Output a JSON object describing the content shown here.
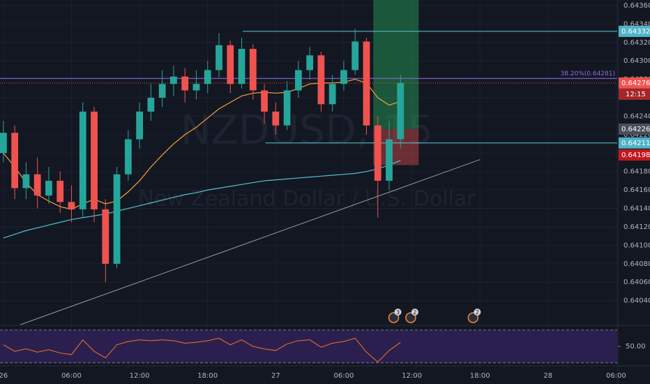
{
  "chart_data": {
    "type": "candlestick",
    "watermark": "NZDUSD, 15",
    "watermark_subtitle": "New Zealand Dollar / U.S. Dollar",
    "xlim": [
      -0.3,
      54.1
    ],
    "ylim": [
      0.64014,
      0.64366
    ],
    "xticks": [
      {
        "value": 0,
        "label": "26"
      },
      {
        "value": 6,
        "label": "06:00"
      },
      {
        "value": 12,
        "label": "12:00"
      },
      {
        "value": 18,
        "label": "18:00"
      },
      {
        "value": 24,
        "label": "27"
      },
      {
        "value": 30,
        "label": "06:00"
      },
      {
        "value": 36,
        "label": "12:00"
      },
      {
        "value": 42,
        "label": "18:00"
      },
      {
        "value": 48,
        "label": "28"
      },
      {
        "value": 54,
        "label": "06:00"
      }
    ],
    "yticks": [
      {
        "value": 0.6404,
        "label": "0.64040"
      },
      {
        "value": 0.6406,
        "label": "0.64060"
      },
      {
        "value": 0.6408,
        "label": "0.64080"
      },
      {
        "value": 0.641,
        "label": "0.64100"
      },
      {
        "value": 0.6412,
        "label": "0.64120"
      },
      {
        "value": 0.6414,
        "label": "0.64140"
      },
      {
        "value": 0.6416,
        "label": "0.64160"
      },
      {
        "value": 0.6418,
        "label": "0.64180"
      },
      {
        "value": 0.642,
        "label": "0.64200"
      },
      {
        "value": 0.6422,
        "label": "0.64220"
      },
      {
        "value": 0.6424,
        "label": "0.64240"
      },
      {
        "value": 0.6426,
        "label": "0.64260"
      },
      {
        "value": 0.6428,
        "label": "0.64280"
      },
      {
        "value": 0.643,
        "label": "0.64300"
      },
      {
        "value": 0.6432,
        "label": "0.64320"
      },
      {
        "value": 0.6434,
        "label": "0.64340"
      },
      {
        "value": 0.6436,
        "label": "0.64360"
      }
    ],
    "up_color": "#26a69a",
    "down_color": "#ef5350",
    "x": [
      0,
      1,
      2,
      3,
      4,
      5,
      6,
      7,
      8,
      9,
      10,
      11,
      12,
      13,
      14,
      15,
      16,
      17,
      18,
      19,
      20,
      21,
      22,
      23,
      24,
      25,
      26,
      27,
      28,
      29,
      30,
      31,
      32,
      33,
      34,
      35
    ],
    "open": [
      0.642,
      0.64222,
      0.64162,
      0.64177,
      0.64154,
      0.6417,
      0.64147,
      0.64139,
      0.64245,
      0.64139,
      0.6408,
      0.64177,
      0.64215,
      0.64245,
      0.6426,
      0.64275,
      0.64283,
      0.64268,
      0.64275,
      0.6429,
      0.64317,
      0.64275,
      0.64313,
      0.64268,
      0.64245,
      0.6423,
      0.64268,
      0.6429,
      0.64306,
      0.64253,
      0.64275,
      0.6429,
      0.64321,
      0.6423,
      0.6417,
      0.64215
    ],
    "high": [
      0.64235,
      0.6423,
      0.6419,
      0.64195,
      0.64185,
      0.6418,
      0.64165,
      0.64255,
      0.6425,
      0.6415,
      0.64185,
      0.64225,
      0.64255,
      0.64275,
      0.6429,
      0.64295,
      0.64292,
      0.6429,
      0.643,
      0.6433,
      0.64322,
      0.64325,
      0.64318,
      0.64275,
      0.64255,
      0.64278,
      0.643,
      0.64315,
      0.6431,
      0.64285,
      0.643,
      0.64335,
      0.64325,
      0.6424,
      0.64235,
      0.64285
    ],
    "low": [
      0.6419,
      0.6415,
      0.6415,
      0.6414,
      0.64145,
      0.64135,
      0.64125,
      0.6413,
      0.64125,
      0.6406,
      0.64075,
      0.6417,
      0.64205,
      0.64235,
      0.6425,
      0.64262,
      0.64255,
      0.64258,
      0.64265,
      0.64282,
      0.64265,
      0.6427,
      0.64258,
      0.64232,
      0.6422,
      0.64225,
      0.6426,
      0.6428,
      0.64245,
      0.64245,
      0.64268,
      0.64285,
      0.6422,
      0.6413,
      0.6416,
      0.64205
    ],
    "close": [
      0.64222,
      0.64162,
      0.64177,
      0.64154,
      0.6417,
      0.64147,
      0.64139,
      0.64245,
      0.64139,
      0.6408,
      0.64177,
      0.64215,
      0.64245,
      0.6426,
      0.64275,
      0.64283,
      0.64268,
      0.64275,
      0.6429,
      0.64317,
      0.64275,
      0.64313,
      0.64268,
      0.64245,
      0.6423,
      0.64268,
      0.6429,
      0.64306,
      0.64253,
      0.64275,
      0.6429,
      0.64321,
      0.6423,
      0.6417,
      0.64215,
      0.64276
    ],
    "series": [
      {
        "color": "#f7a13c",
        "values": [
          0.642,
          0.64185,
          0.64168,
          0.64155,
          0.64148,
          0.64142,
          0.64139,
          0.64145,
          0.6415,
          0.64145,
          0.64148,
          0.64158,
          0.6417,
          0.64185,
          0.64198,
          0.6421,
          0.6422,
          0.64228,
          0.64238,
          0.64248,
          0.64255,
          0.64262,
          0.64265,
          0.64266,
          0.64265,
          0.64266,
          0.6427,
          0.64275,
          0.64276,
          0.64276,
          0.64277,
          0.6428,
          0.64276,
          0.6426,
          0.64252,
          0.64256
        ]
      },
      {
        "color": "#4fc3c9",
        "values": [
          0.64108,
          0.64112,
          0.64116,
          0.64119,
          0.64122,
          0.64125,
          0.64128,
          0.6413,
          0.64132,
          0.64134,
          0.64137,
          0.6414,
          0.64143,
          0.64146,
          0.64149,
          0.64152,
          0.64155,
          0.64157,
          0.6416,
          0.64162,
          0.64164,
          0.64166,
          0.64168,
          0.6417,
          0.64171,
          0.64172,
          0.64173,
          0.64174,
          0.64175,
          0.64176,
          0.64177,
          0.64178,
          0.6418,
          0.64183,
          0.64187,
          0.64192
        ]
      }
    ],
    "trendline": {
      "x": [
        1.5,
        42
      ],
      "y": [
        0.64014,
        0.64193
      ]
    },
    "levels": [
      {
        "value": 0.64332,
        "from": 21.1,
        "color": "#5ec8d8"
      },
      {
        "value": 0.64211,
        "from": 23.1,
        "color": "#5ec8d8"
      }
    ],
    "fib": {
      "label": "38.20%(0.64281)",
      "value": 0.64281,
      "color": "#8c6ee0"
    },
    "position": {
      "from": 32.6,
      "to": 36.6,
      "entry": 0.64226,
      "stop": 0.64187,
      "target": 0.64366
    },
    "price_tags": [
      {
        "label": "0.64332",
        "value": 0.64332,
        "color": "#4fb3c8"
      },
      {
        "label": "0.64276",
        "value": 0.64276,
        "color": "#ef5350"
      },
      {
        "label": "0.64226",
        "value": 0.64226,
        "color": "#4a4e5a"
      },
      {
        "label": "0.64211",
        "value": 0.64211,
        "color": "#4fb3c8"
      },
      {
        "label": "0.64198",
        "value": 0.64198,
        "color": "#c2181f"
      }
    ],
    "countdown": "12:15",
    "events": [
      {
        "label": "3",
        "x": 34.4
      },
      {
        "label": "2",
        "x": 35.9
      },
      {
        "label": "2",
        "x": 41.4
      }
    ],
    "rsi": {
      "color": "#f7731c",
      "ylim": [
        28,
        74
      ],
      "yticks": [
        {
          "value": 50,
          "label": "50.00"
        }
      ],
      "bands": [
        30,
        70
      ],
      "values": [
        52,
        44,
        47,
        43,
        46,
        42,
        40,
        58,
        44,
        36,
        52,
        56,
        58,
        57,
        58,
        57,
        54,
        55,
        57,
        60,
        52,
        58,
        50,
        47,
        45,
        53,
        57,
        58,
        49,
        54,
        56,
        60,
        43,
        31,
        45,
        55
      ]
    }
  }
}
